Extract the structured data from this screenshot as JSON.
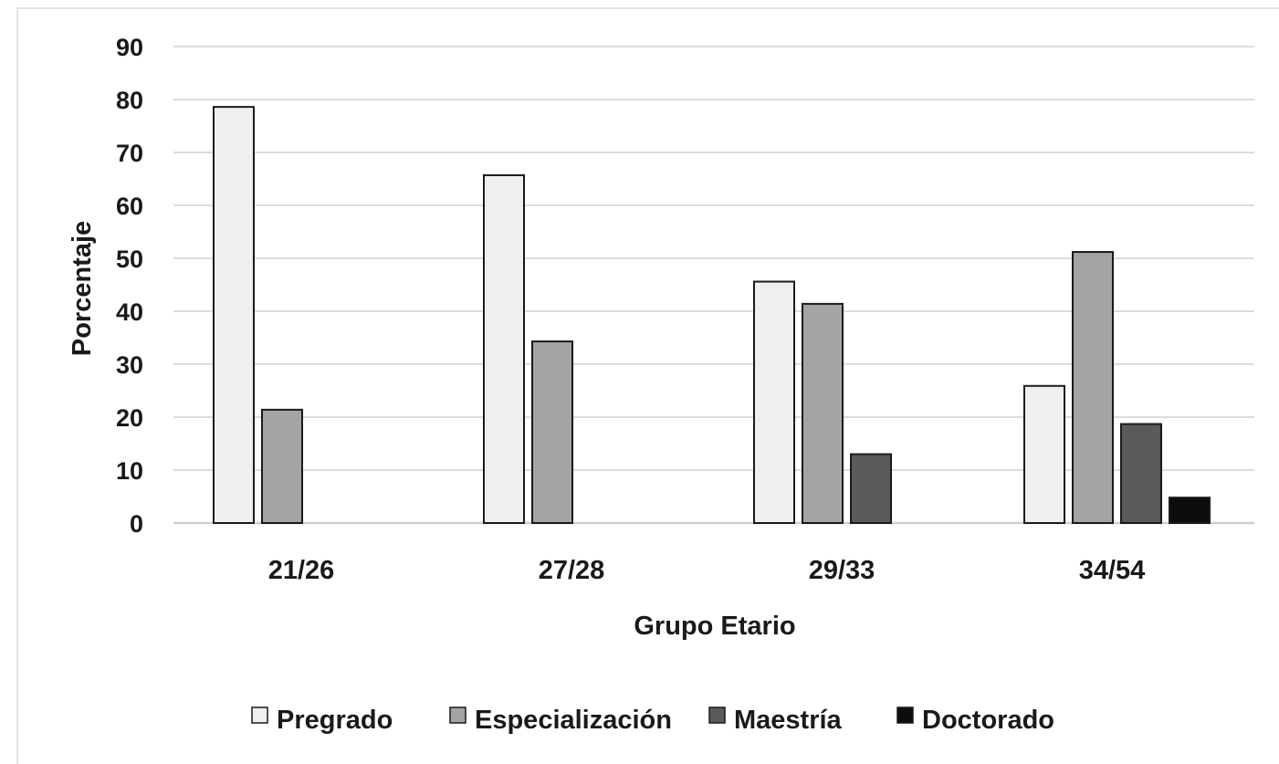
{
  "chart_data": {
    "type": "bar",
    "title": "",
    "xlabel": "Grupo Etario",
    "ylabel": "Porcentaje",
    "ylim": [
      0,
      90
    ],
    "yticks": [
      0,
      10,
      20,
      30,
      40,
      50,
      60,
      70,
      80,
      90
    ],
    "grid": true,
    "legend_position": "bottom",
    "categories": [
      "21/26",
      "27/28",
      "29/33",
      "34/54"
    ],
    "series": [
      {
        "name": "Pregrado",
        "values": [
          78.6,
          65.7,
          45.6,
          25.9
        ],
        "color": "#efefef"
      },
      {
        "name": "Especialización",
        "values": [
          21.4,
          34.3,
          41.4,
          51.2
        ],
        "color": "#a4a4a4"
      },
      {
        "name": "Maestría",
        "values": [
          0,
          0,
          13.0,
          18.7
        ],
        "color": "#5a5a5a"
      },
      {
        "name": "Doctorado",
        "values": [
          0,
          0,
          0,
          4.8
        ],
        "color": "#0d0d0d"
      }
    ]
  }
}
